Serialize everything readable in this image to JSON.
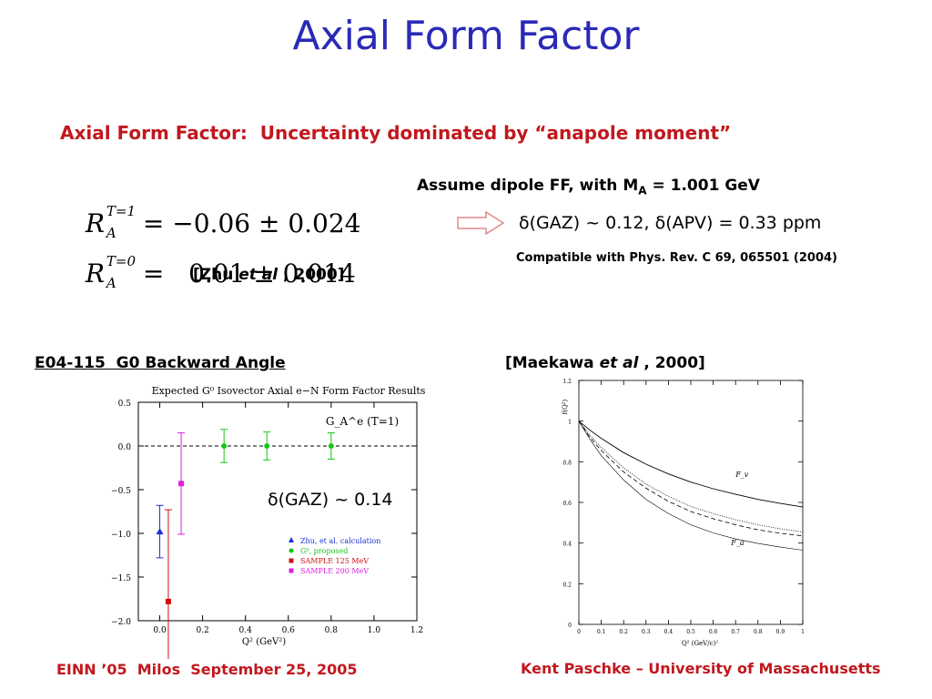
{
  "slide": {
    "title": "Axial Form Factor",
    "subtitle": "Axial Form Factor:  Uncertainty dominated by “anapole moment”",
    "eq1": {
      "R": "R",
      "sup": "T=1",
      "sub": "A",
      "rhs": "= −0.06 ± 0.024"
    },
    "eq2": {
      "R": "R",
      "sup": "T=0",
      "sub": "A",
      "rhs": "=   0.01 ± 0.014"
    },
    "zhu_ref": {
      "pre": "[Zhu ",
      "ital": "et al",
      "post": " , 2000]"
    },
    "assume": {
      "text": "Assume dipole FF, with M",
      "sub": "A",
      "tail": " = 1.001 GeV"
    },
    "result": "δ(GAZ) ~ 0.12, δ(APV) = 0.33 ppm",
    "compatible": "Compatible with Phys. Rev. C 69, 065501 (2004)",
    "left_label": "E04-115  G0 Backward Angle",
    "right_label": {
      "pre": "[Maekawa ",
      "ital": "et al",
      "post": " , 2000]"
    },
    "delta_label": "δ(GAZ) ~ 0.14",
    "footer_left": "EINN ’05  Milos  September 25, 2005",
    "footer_right": "Kent Paschke – University of Massachusetts",
    "colors": {
      "title": "#2a2ab8",
      "accent": "#c0181e",
      "blue": "#1b2fd6",
      "green": "#19c419",
      "red": "#d01010",
      "magenta": "#e01ee0"
    }
  },
  "chart_data": [
    {
      "type": "scatter",
      "title": "Expected G⁰ Isovector Axial e−N Form Factor Results",
      "xlabel": "Q² (GeV²)",
      "ylabel": "",
      "xlim": [
        -0.1,
        1.2
      ],
      "ylim": [
        -2.0,
        0.5
      ],
      "x_ticks": [
        "0.0",
        "0.2",
        "0.4",
        "0.6",
        "0.8",
        "1.0",
        "1.2"
      ],
      "y_ticks": [
        "0.5",
        "0.0",
        "−0.5",
        "−1.0",
        "−1.5",
        "−2.0"
      ],
      "annotation": "G_A^e (T=1)",
      "series": [
        {
          "name": "Zhu, et al. calculation",
          "marker": "triangle",
          "color": "#1b2fd6",
          "points": [
            {
              "x": 0.0,
              "y": -0.98,
              "err": 0.3
            }
          ]
        },
        {
          "name": "G⁰, proposed",
          "marker": "circle",
          "color": "#19c419",
          "points": [
            {
              "x": 0.3,
              "y": 0.0,
              "err": 0.19
            },
            {
              "x": 0.5,
              "y": 0.0,
              "err": 0.16
            },
            {
              "x": 0.8,
              "y": 0.0,
              "err": 0.15
            }
          ]
        },
        {
          "name": "SAMPLE 125 MeV",
          "marker": "square",
          "color": "#d01010",
          "points": [
            {
              "x": 0.04,
              "y": -1.78,
              "err": 1.05
            }
          ]
        },
        {
          "name": "SAMPLE 200 MeV",
          "marker": "square",
          "color": "#e01ee0",
          "points": [
            {
              "x": 0.1,
              "y": -0.43,
              "err": 0.58
            }
          ]
        }
      ]
    },
    {
      "type": "line",
      "title": "",
      "xlabel": "Q² (GeV/c)²",
      "ylabel": "f(Q²)",
      "xlim": [
        0,
        1.0
      ],
      "ylim": [
        0,
        1.2
      ],
      "x_ticks": [
        "0",
        "0.1",
        "0.2",
        "0.3",
        "0.4",
        "0.5",
        "0.6",
        "0.7",
        "0.8",
        "0.9",
        "1"
      ],
      "y_ticks": [
        "1.2",
        "1",
        "0.8",
        "0.6",
        "0.4",
        "0.2",
        "0"
      ],
      "series": [
        {
          "name": "F_v",
          "style": "solid",
          "x": [
            0,
            0.05,
            0.1,
            0.2,
            0.3,
            0.4,
            0.5,
            0.6,
            0.7,
            0.8,
            0.9,
            1.0
          ],
          "y": [
            1.0,
            0.955,
            0.915,
            0.845,
            0.788,
            0.74,
            0.7,
            0.667,
            0.64,
            0.615,
            0.595,
            0.577
          ]
        },
        {
          "name": "",
          "style": "dotted",
          "x": [
            0,
            0.05,
            0.1,
            0.2,
            0.3,
            0.4,
            0.5,
            0.6,
            0.7,
            0.8,
            0.9,
            1.0
          ],
          "y": [
            1.0,
            0.93,
            0.87,
            0.77,
            0.69,
            0.63,
            0.58,
            0.545,
            0.515,
            0.49,
            0.47,
            0.455
          ]
        },
        {
          "name": "",
          "style": "dashed",
          "x": [
            0,
            0.05,
            0.1,
            0.2,
            0.3,
            0.4,
            0.5,
            0.6,
            0.7,
            0.8,
            0.9,
            1.0
          ],
          "y": [
            1.0,
            0.92,
            0.855,
            0.75,
            0.67,
            0.605,
            0.555,
            0.52,
            0.49,
            0.465,
            0.448,
            0.435
          ]
        },
        {
          "name": "F_a",
          "style": "solid-thin",
          "x": [
            0,
            0.05,
            0.1,
            0.2,
            0.3,
            0.4,
            0.5,
            0.6,
            0.7,
            0.8,
            0.9,
            1.0
          ],
          "y": [
            1.0,
            0.91,
            0.83,
            0.71,
            0.615,
            0.545,
            0.49,
            0.45,
            0.42,
            0.398,
            0.38,
            0.365
          ]
        }
      ]
    }
  ]
}
